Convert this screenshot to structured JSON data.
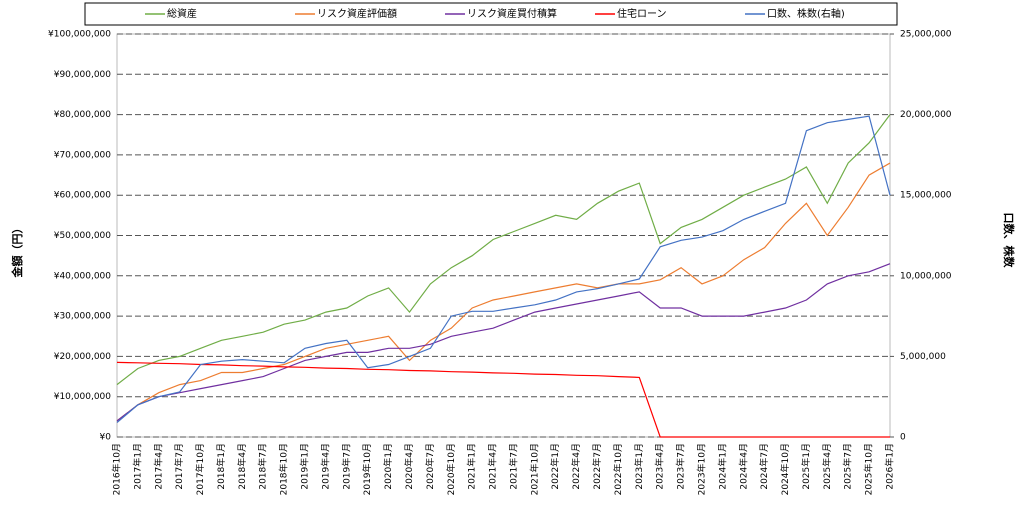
{
  "chart_data": {
    "type": "line",
    "legend_position": "top",
    "grid": true,
    "y_label": "金額（円）",
    "y2_label": "口数、株数",
    "categories": [
      "2016年10月",
      "2017年1月",
      "2017年4月",
      "2017年7月",
      "2017年10月",
      "2018年1月",
      "2018年4月",
      "2018年7月",
      "2018年10月",
      "2019年1月",
      "2019年4月",
      "2019年7月",
      "2019年10月",
      "2020年1月",
      "2020年4月",
      "2020年7月",
      "2020年10月",
      "2021年1月",
      "2021年4月",
      "2021年7月",
      "2021年10月",
      "2022年1月",
      "2022年4月",
      "2022年7月",
      "2022年10月",
      "2023年1月",
      "2023年4月",
      "2023年7月",
      "2023年10月",
      "2024年1月",
      "2024年4月",
      "2024年7月",
      "2024年10月",
      "2025年1月",
      "2025年4月",
      "2025年7月",
      "2025年10月",
      "2026年1月"
    ],
    "ylim": [
      0,
      100000000
    ],
    "yticks": [
      {
        "value": 0,
        "label": "¥0"
      },
      {
        "value": 10000000,
        "label": "¥10,000,000"
      },
      {
        "value": 20000000,
        "label": "¥20,000,000"
      },
      {
        "value": 30000000,
        "label": "¥30,000,000"
      },
      {
        "value": 40000000,
        "label": "¥40,000,000"
      },
      {
        "value": 50000000,
        "label": "¥50,000,000"
      },
      {
        "value": 60000000,
        "label": "¥60,000,000"
      },
      {
        "value": 70000000,
        "label": "¥70,000,000"
      },
      {
        "value": 80000000,
        "label": "¥80,000,000"
      },
      {
        "value": 90000000,
        "label": "¥90,000,000"
      },
      {
        "value": 100000000,
        "label": "¥100,000,000"
      }
    ],
    "y2lim": [
      0,
      25000000
    ],
    "y2ticks": [
      0,
      {
        "value": 5000000,
        "label": "5,000,000"
      },
      {
        "value": 10000000,
        "label": "10,000,000"
      },
      {
        "value": 15000000,
        "label": "15,000,000"
      },
      {
        "value": 20000000,
        "label": "20,000,000"
      },
      {
        "value": 25000000,
        "label": "25,000,000"
      }
    ],
    "series": [
      {
        "name": "総資産",
        "color": "#70ad47",
        "values": [
          13000000,
          17000000,
          19000000,
          20000000,
          22000000,
          24000000,
          25000000,
          26000000,
          28000000,
          29000000,
          31000000,
          32000000,
          35000000,
          37000000,
          31000000,
          38000000,
          42000000,
          45000000,
          49000000,
          51000000,
          53000000,
          55000000,
          54000000,
          58000000,
          61000000,
          63000000,
          48000000,
          52000000,
          54000000,
          57000000,
          60000000,
          62000000,
          64000000,
          67000000,
          58000000,
          68000000,
          73000000,
          80000000
        ]
      },
      {
        "name": "リスク資産評価額",
        "color": "#ed7d31",
        "values": [
          4000000,
          8000000,
          11000000,
          13000000,
          14000000,
          16000000,
          16000000,
          17000000,
          18000000,
          20000000,
          22000000,
          23000000,
          24000000,
          25000000,
          19000000,
          24000000,
          27000000,
          32000000,
          34000000,
          35000000,
          36000000,
          37000000,
          38000000,
          37000000,
          38000000,
          38000000,
          39000000,
          42000000,
          38000000,
          40000000,
          44000000,
          47000000,
          53000000,
          58000000,
          50000000,
          57000000,
          65000000,
          68000000
        ]
      },
      {
        "name": "リスク資産買付積算",
        "color": "#7030a0",
        "values": [
          4000000,
          8000000,
          10000000,
          11000000,
          12000000,
          13000000,
          14000000,
          15000000,
          17000000,
          19000000,
          20000000,
          21000000,
          21000000,
          22000000,
          22000000,
          23000000,
          25000000,
          26000000,
          27000000,
          29000000,
          31000000,
          32000000,
          33000000,
          34000000,
          35000000,
          36000000,
          32000000,
          32000000,
          30000000,
          30000000,
          30000000,
          31000000,
          32000000,
          34000000,
          38000000,
          40000000,
          41000000,
          43000000
        ]
      },
      {
        "name": "住宅ローン",
        "color": "#ff0000",
        "values": [
          18500000,
          18400000,
          18300000,
          18200000,
          18000000,
          17900000,
          17700000,
          17600000,
          17400000,
          17300000,
          17100000,
          17000000,
          16800000,
          16700000,
          16500000,
          16400000,
          16200000,
          16100000,
          15900000,
          15800000,
          15600000,
          15500000,
          15300000,
          15200000,
          15000000,
          14800000,
          0,
          0,
          0,
          0,
          0,
          0,
          0,
          0,
          0,
          0,
          0,
          0
        ]
      },
      {
        "name": "口数、株数(右軸)",
        "color": "#4472c4",
        "axis": "y2",
        "values": [
          900000,
          2000000,
          2500000,
          2800000,
          4500000,
          4700000,
          4800000,
          4700000,
          4600000,
          5500000,
          5800000,
          6000000,
          4300000,
          4500000,
          5000000,
          5500000,
          7500000,
          7800000,
          7800000,
          8000000,
          8200000,
          8500000,
          9000000,
          9200000,
          9500000,
          9800000,
          11800000,
          12200000,
          12400000,
          12800000,
          13500000,
          14000000,
          14500000,
          19000000,
          19500000,
          19700000,
          19900000,
          15000000
        ]
      }
    ]
  }
}
